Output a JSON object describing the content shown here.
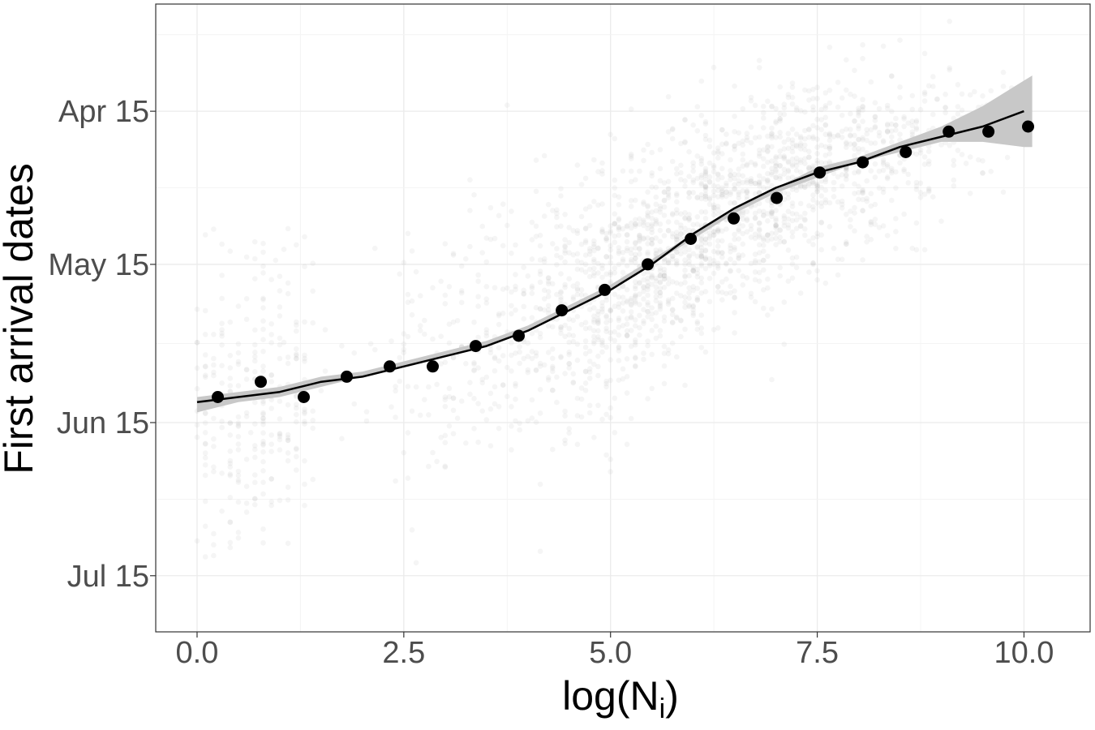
{
  "chart_data": {
    "type": "scatter",
    "title": "",
    "xlabel": {
      "base": "log(N",
      "sub": "i",
      "close": ")"
    },
    "ylabel": "First arrival dates",
    "x_ticks": [
      "0.0",
      "2.5",
      "5.0",
      "7.5",
      "10.0"
    ],
    "y_ticks": [
      "Apr 15",
      "May 15",
      "Jun 15",
      "Jul 15"
    ],
    "x_tick_values": [
      0,
      2.5,
      5,
      7.5,
      10
    ],
    "y_tick_dates": [
      "04-15",
      "05-15",
      "06-15",
      "07-15"
    ],
    "xlim": [
      -0.5,
      10.8
    ],
    "ylim": [
      "03-25",
      "07-26"
    ],
    "y_reversed": true,
    "grid": true,
    "legend": "none",
    "binned_means": {
      "x": [
        0.25,
        0.77,
        1.29,
        1.81,
        2.33,
        2.85,
        3.37,
        3.89,
        4.41,
        4.93,
        5.45,
        5.97,
        6.49,
        7.01,
        7.53,
        8.05,
        8.57,
        9.09,
        9.57,
        10.05
      ],
      "y": [
        "06-10",
        "06-07",
        "06-10",
        "06-06",
        "06-04",
        "06-04",
        "05-31",
        "05-29",
        "05-24",
        "05-20",
        "05-15",
        "05-10",
        "05-06",
        "05-02",
        "04-27",
        "04-25",
        "04-23",
        "04-19",
        "04-19",
        "04-18"
      ]
    },
    "fitted_curve": {
      "x": [
        0.0,
        0.5,
        1.0,
        1.5,
        2.0,
        2.5,
        3.0,
        3.5,
        4.0,
        4.5,
        5.0,
        5.5,
        6.0,
        6.5,
        7.0,
        7.5,
        8.0,
        8.5,
        9.0,
        9.5,
        10.0
      ],
      "y": [
        "06-11",
        "06-10",
        "06-09",
        "06-07",
        "06-06",
        "06-04",
        "06-02",
        "05-31",
        "05-28",
        "05-24",
        "05-20",
        "05-15",
        "05-09",
        "05-04",
        "04-30",
        "04-27",
        "04-25",
        "04-22",
        "04-20",
        "04-18",
        "04-15"
      ]
    },
    "confidence_band": {
      "x": [
        0.0,
        0.5,
        1.0,
        1.5,
        2.0,
        2.5,
        3.0,
        3.5,
        4.0,
        4.5,
        5.0,
        5.5,
        6.0,
        6.5,
        7.0,
        7.5,
        8.0,
        8.5,
        9.0,
        9.5,
        10.0,
        10.1
      ],
      "lower": [
        "06-13",
        "06-11",
        "06-10",
        "06-08",
        "06-06",
        "06-04",
        "06-02",
        "05-31",
        "05-28",
        "05-24",
        "05-20",
        "05-15",
        "05-10",
        "05-05",
        "05-01",
        "04-28",
        "04-25",
        "04-23",
        "04-21",
        "04-21",
        "04-22",
        "04-22"
      ],
      "upper": [
        "06-10",
        "06-09",
        "06-08",
        "06-06",
        "06-05",
        "06-03",
        "06-01",
        "05-30",
        "05-27",
        "05-23",
        "05-19",
        "05-14",
        "05-09",
        "05-04",
        "04-30",
        "04-26",
        "04-24",
        "04-21",
        "04-18",
        "04-14",
        "04-09",
        "04-08"
      ]
    },
    "raw_observations_note": "dense semi-transparent grey points (individual first arrival dates per site)",
    "colors": {
      "points": "#000000",
      "raw_points": "#999999",
      "band": "#c8c8c8",
      "line": "#000000",
      "grid": "#ebebeb",
      "panel_border": "#333333"
    }
  }
}
